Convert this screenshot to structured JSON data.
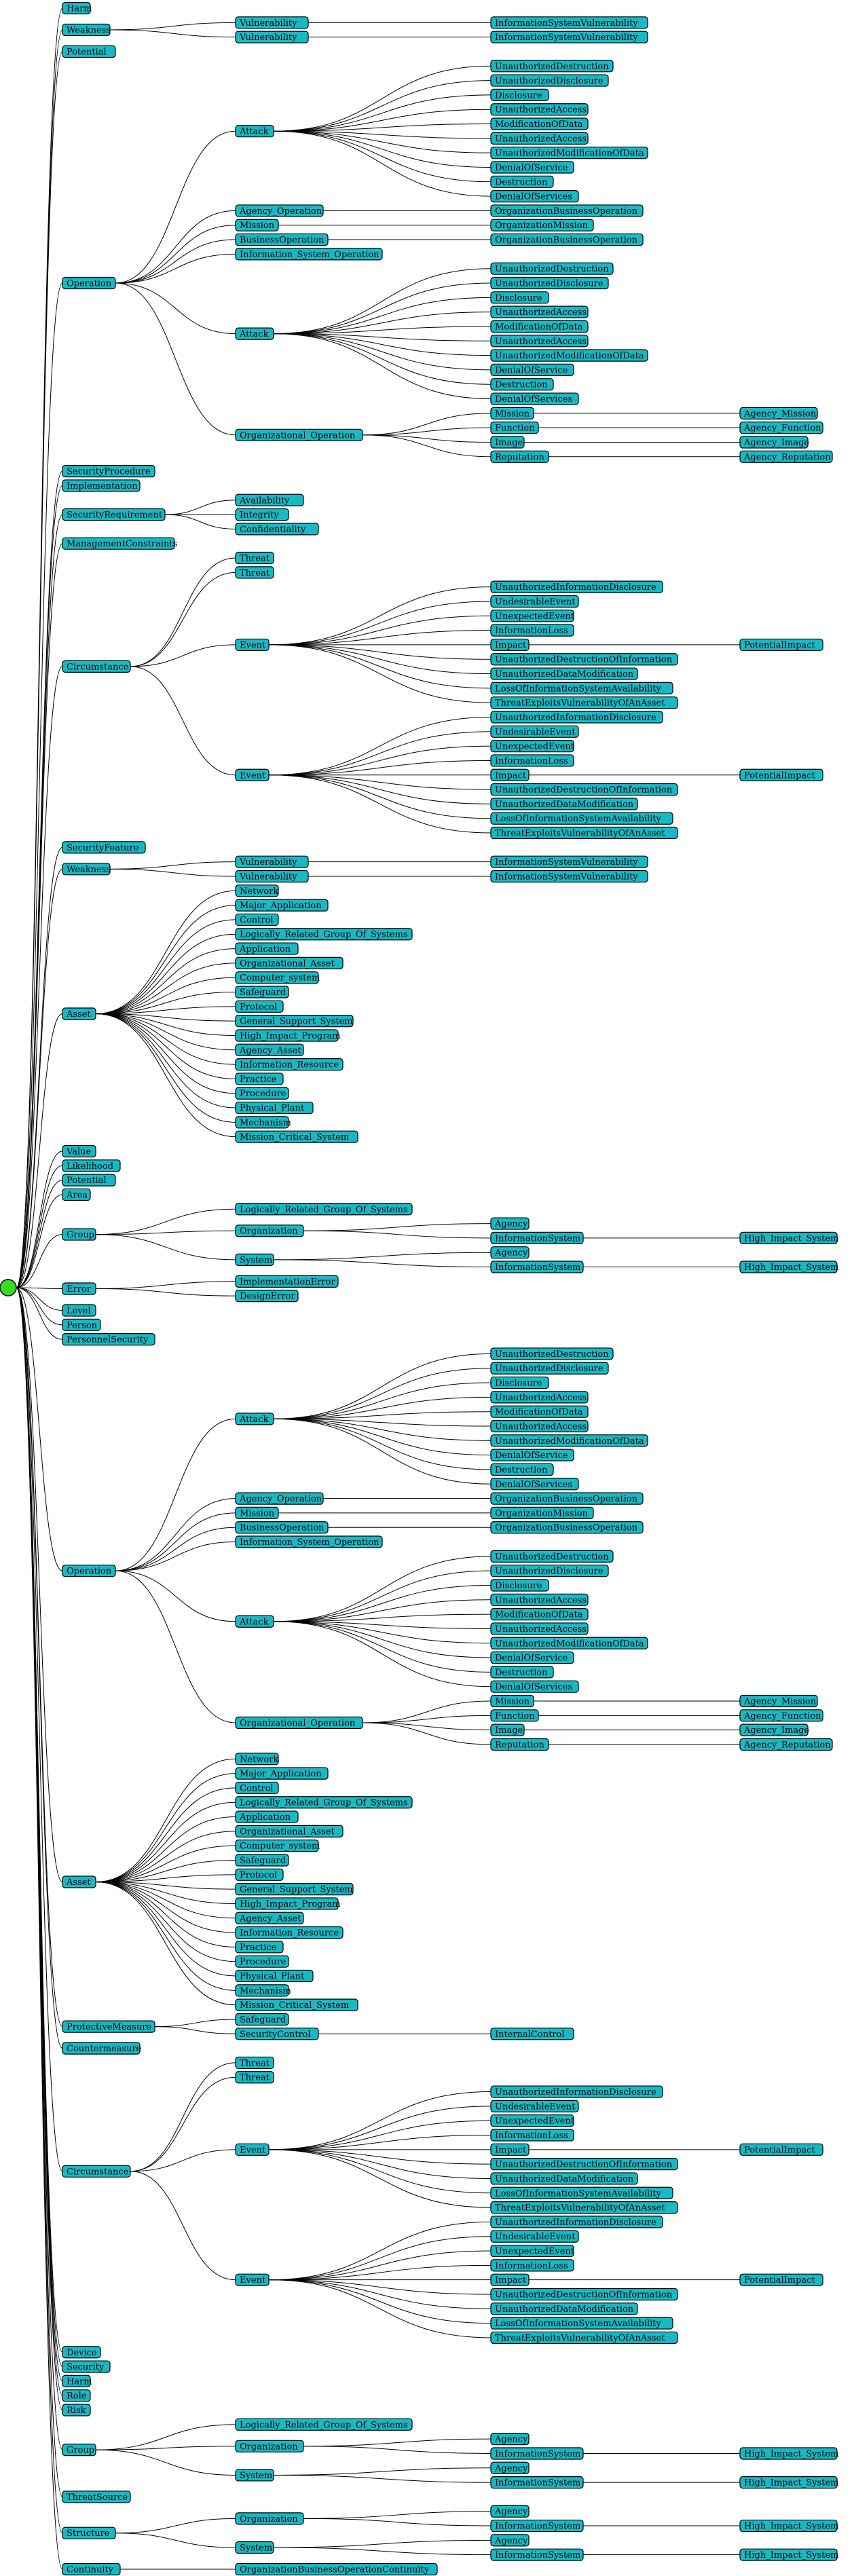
{
  "tree": {
    "label": "",
    "children": [
      {
        "label": "Harm"
      },
      {
        "label": "Weakness",
        "children": [
          {
            "label": "Vulnerability",
            "children": [
              {
                "label": "InformationSystemVulnerability"
              }
            ]
          },
          {
            "label": "Vulnerability",
            "children": [
              {
                "label": "InformationSystemVulnerability"
              }
            ]
          }
        ]
      },
      {
        "label": "Potential"
      },
      {
        "label": "Operation",
        "children": [
          {
            "label": "Attack",
            "children": [
              {
                "label": "UnauthorizedDestruction"
              },
              {
                "label": "UnauthorizedDisclosure"
              },
              {
                "label": "Disclosure"
              },
              {
                "label": "UnauthorizedAccess"
              },
              {
                "label": "ModificationOfData"
              },
              {
                "label": "UnauthorizedAccess"
              },
              {
                "label": "UnauthorizedModificationOfData"
              },
              {
                "label": "DenialOfService"
              },
              {
                "label": "Destruction"
              },
              {
                "label": "DenialOfServices"
              }
            ]
          },
          {
            "label": "Agency_Operation",
            "children": [
              {
                "label": "OrganizationBusinessOperation"
              }
            ]
          },
          {
            "label": "Mission",
            "children": [
              {
                "label": "OrganizationMission"
              }
            ]
          },
          {
            "label": "BusinessOperation",
            "children": [
              {
                "label": "OrganizationBusinessOperation"
              }
            ]
          },
          {
            "label": "Information_System_Operation"
          },
          {
            "label": "Attack",
            "children": [
              {
                "label": "UnauthorizedDestruction"
              },
              {
                "label": "UnauthorizedDisclosure"
              },
              {
                "label": "Disclosure"
              },
              {
                "label": "UnauthorizedAccess"
              },
              {
                "label": "ModificationOfData"
              },
              {
                "label": "UnauthorizedAccess"
              },
              {
                "label": "UnauthorizedModificationOfData"
              },
              {
                "label": "DenialOfService"
              },
              {
                "label": "Destruction"
              },
              {
                "label": "DenialOfServices"
              }
            ]
          },
          {
            "label": "Organizational_Operation",
            "children": [
              {
                "label": "Mission",
                "children": [
                  {
                    "label": "Agency_Mission"
                  }
                ]
              },
              {
                "label": "Function",
                "children": [
                  {
                    "label": "Agency_Function"
                  }
                ]
              },
              {
                "label": "Image",
                "children": [
                  {
                    "label": "Agency_Image"
                  }
                ]
              },
              {
                "label": "Reputation",
                "children": [
                  {
                    "label": "Agency_Reputation"
                  }
                ]
              }
            ]
          }
        ]
      },
      {
        "label": "SecurityProcedure"
      },
      {
        "label": "Implementation"
      },
      {
        "label": "SecurityRequirement",
        "children": [
          {
            "label": "Availability"
          },
          {
            "label": "Integrity"
          },
          {
            "label": "Confidentiality"
          }
        ]
      },
      {
        "label": "ManagementConstraints"
      },
      {
        "label": "Circumstance",
        "children": [
          {
            "label": "Threat"
          },
          {
            "label": "Threat"
          },
          {
            "label": "Event",
            "children": [
              {
                "label": "UnauthorizedInformationDisclosure"
              },
              {
                "label": "UndesirableEvent"
              },
              {
                "label": "UnexpectedEvent"
              },
              {
                "label": "InformationLoss"
              },
              {
                "label": "Impact",
                "children": [
                  {
                    "label": "PotentialImpact"
                  }
                ]
              },
              {
                "label": "UnauthorizedDestructionOfInformation"
              },
              {
                "label": "UnauthorizedDataModification"
              },
              {
                "label": "LossOfInformationSystemAvailability"
              },
              {
                "label": "ThreatExploitsVulnerabilityOfAnAsset"
              }
            ]
          },
          {
            "label": "Event",
            "children": [
              {
                "label": "UnauthorizedInformationDisclosure"
              },
              {
                "label": "UndesirableEvent"
              },
              {
                "label": "UnexpectedEvent"
              },
              {
                "label": "InformationLoss"
              },
              {
                "label": "Impact",
                "children": [
                  {
                    "label": "PotentialImpact"
                  }
                ]
              },
              {
                "label": "UnauthorizedDestructionOfInformation"
              },
              {
                "label": "UnauthorizedDataModification"
              },
              {
                "label": "LossOfInformationSystemAvailability"
              },
              {
                "label": "ThreatExploitsVulnerabilityOfAnAsset"
              }
            ]
          }
        ]
      },
      {
        "label": "SecurityFeature"
      },
      {
        "label": "Weakness",
        "children": [
          {
            "label": "Vulnerability",
            "children": [
              {
                "label": "InformationSystemVulnerability"
              }
            ]
          },
          {
            "label": "Vulnerability",
            "children": [
              {
                "label": "InformationSystemVulnerability"
              }
            ]
          }
        ]
      },
      {
        "label": "Asset",
        "children": [
          {
            "label": "Network"
          },
          {
            "label": "Major_Application"
          },
          {
            "label": "Control"
          },
          {
            "label": "Logically_Related_Group_Of_Systems"
          },
          {
            "label": "Application"
          },
          {
            "label": "Organizational_Asset"
          },
          {
            "label": "Computer_system"
          },
          {
            "label": "Safeguard"
          },
          {
            "label": "Protocol"
          },
          {
            "label": "General_Support_System"
          },
          {
            "label": "High_Impact_Program"
          },
          {
            "label": "Agency_Asset"
          },
          {
            "label": "Information_Resource"
          },
          {
            "label": "Practice"
          },
          {
            "label": "Procedure"
          },
          {
            "label": "Physical_Plant"
          },
          {
            "label": "Mechanism"
          },
          {
            "label": "Mission_Critical_System"
          }
        ]
      },
      {
        "label": "Value"
      },
      {
        "label": "Likelihood"
      },
      {
        "label": "Potential"
      },
      {
        "label": "Area"
      },
      {
        "label": "Group",
        "children": [
          {
            "label": "Logically_Related_Group_Of_Systems"
          },
          {
            "label": "Organization",
            "children": [
              {
                "label": "Agency"
              },
              {
                "label": "InformationSystem",
                "children": [
                  {
                    "label": "High_Impact_System"
                  }
                ]
              }
            ]
          },
          {
            "label": "System",
            "children": [
              {
                "label": "Agency"
              },
              {
                "label": "InformationSystem",
                "children": [
                  {
                    "label": "High_Impact_System"
                  }
                ]
              }
            ]
          }
        ]
      },
      {
        "label": "Error",
        "children": [
          {
            "label": "ImplementationError"
          },
          {
            "label": "DesignError"
          }
        ]
      },
      {
        "label": "Level"
      },
      {
        "label": "Person"
      },
      {
        "label": "PersonnelSecurity"
      },
      {
        "label": "Operation",
        "children": [
          {
            "label": "Attack",
            "children": [
              {
                "label": "UnauthorizedDestruction"
              },
              {
                "label": "UnauthorizedDisclosure"
              },
              {
                "label": "Disclosure"
              },
              {
                "label": "UnauthorizedAccess"
              },
              {
                "label": "ModificationOfData"
              },
              {
                "label": "UnauthorizedAccess"
              },
              {
                "label": "UnauthorizedModificationOfData"
              },
              {
                "label": "DenialOfService"
              },
              {
                "label": "Destruction"
              },
              {
                "label": "DenialOfServices"
              }
            ]
          },
          {
            "label": "Agency_Operation",
            "children": [
              {
                "label": "OrganizationBusinessOperation"
              }
            ]
          },
          {
            "label": "Mission",
            "children": [
              {
                "label": "OrganizationMission"
              }
            ]
          },
          {
            "label": "BusinessOperation",
            "children": [
              {
                "label": "OrganizationBusinessOperation"
              }
            ]
          },
          {
            "label": "Information_System_Operation"
          },
          {
            "label": "Attack",
            "children": [
              {
                "label": "UnauthorizedDestruction"
              },
              {
                "label": "UnauthorizedDisclosure"
              },
              {
                "label": "Disclosure"
              },
              {
                "label": "UnauthorizedAccess"
              },
              {
                "label": "ModificationOfData"
              },
              {
                "label": "UnauthorizedAccess"
              },
              {
                "label": "UnauthorizedModificationOfData"
              },
              {
                "label": "DenialOfService"
              },
              {
                "label": "Destruction"
              },
              {
                "label": "DenialOfServices"
              }
            ]
          },
          {
            "label": "Organizational_Operation",
            "children": [
              {
                "label": "Mission",
                "children": [
                  {
                    "label": "Agency_Mission"
                  }
                ]
              },
              {
                "label": "Function",
                "children": [
                  {
                    "label": "Agency_Function"
                  }
                ]
              },
              {
                "label": "Image",
                "children": [
                  {
                    "label": "Agency_Image"
                  }
                ]
              },
              {
                "label": "Reputation",
                "children": [
                  {
                    "label": "Agency_Reputation"
                  }
                ]
              }
            ]
          }
        ]
      },
      {
        "label": "Asset",
        "children": [
          {
            "label": "Network"
          },
          {
            "label": "Major_Application"
          },
          {
            "label": "Control"
          },
          {
            "label": "Logically_Related_Group_Of_Systems"
          },
          {
            "label": "Application"
          },
          {
            "label": "Organizational_Asset"
          },
          {
            "label": "Computer_system"
          },
          {
            "label": "Safeguard"
          },
          {
            "label": "Protocol"
          },
          {
            "label": "General_Support_System"
          },
          {
            "label": "High_Impact_Program"
          },
          {
            "label": "Agency_Asset"
          },
          {
            "label": "Information_Resource"
          },
          {
            "label": "Practice"
          },
          {
            "label": "Procedure"
          },
          {
            "label": "Physical_Plant"
          },
          {
            "label": "Mechanism"
          },
          {
            "label": "Mission_Critical_System"
          }
        ]
      },
      {
        "label": "ProtectiveMeasure",
        "children": [
          {
            "label": "Safeguard"
          },
          {
            "label": "SecurityControl",
            "children": [
              {
                "label": "InternalControl"
              }
            ]
          }
        ]
      },
      {
        "label": "Countermeasure"
      },
      {
        "label": "Circumstance",
        "children": [
          {
            "label": "Threat"
          },
          {
            "label": "Threat"
          },
          {
            "label": "Event",
            "children": [
              {
                "label": "UnauthorizedInformationDisclosure"
              },
              {
                "label": "UndesirableEvent"
              },
              {
                "label": "UnexpectedEvent"
              },
              {
                "label": "InformationLoss"
              },
              {
                "label": "Impact",
                "children": [
                  {
                    "label": "PotentialImpact"
                  }
                ]
              },
              {
                "label": "UnauthorizedDestructionOfInformation"
              },
              {
                "label": "UnauthorizedDataModification"
              },
              {
                "label": "LossOfInformationSystemAvailability"
              },
              {
                "label": "ThreatExploitsVulnerabilityOfAnAsset"
              }
            ]
          },
          {
            "label": "Event",
            "children": [
              {
                "label": "UnauthorizedInformationDisclosure"
              },
              {
                "label": "UndesirableEvent"
              },
              {
                "label": "UnexpectedEvent"
              },
              {
                "label": "InformationLoss"
              },
              {
                "label": "Impact",
                "children": [
                  {
                    "label": "PotentialImpact"
                  }
                ]
              },
              {
                "label": "UnauthorizedDestructionOfInformation"
              },
              {
                "label": "UnauthorizedDataModification"
              },
              {
                "label": "LossOfInformationSystemAvailability"
              },
              {
                "label": "ThreatExploitsVulnerabilityOfAnAsset"
              }
            ]
          }
        ]
      },
      {
        "label": "Device"
      },
      {
        "label": "Security"
      },
      {
        "label": "Harm"
      },
      {
        "label": "Role"
      },
      {
        "label": "Risk"
      },
      {
        "label": "Group",
        "children": [
          {
            "label": "Logically_Related_Group_Of_Systems"
          },
          {
            "label": "Organization",
            "children": [
              {
                "label": "Agency"
              },
              {
                "label": "InformationSystem",
                "children": [
                  {
                    "label": "High_Impact_System"
                  }
                ]
              }
            ]
          },
          {
            "label": "System",
            "children": [
              {
                "label": "Agency"
              },
              {
                "label": "InformationSystem",
                "children": [
                  {
                    "label": "High_Impact_System"
                  }
                ]
              }
            ]
          }
        ]
      },
      {
        "label": "ThreatSource"
      },
      {
        "label": "Structure",
        "children": [
          {
            "label": "Organization",
            "children": [
              {
                "label": "Agency"
              },
              {
                "label": "InformationSystem",
                "children": [
                  {
                    "label": "High_Impact_System"
                  }
                ]
              }
            ]
          },
          {
            "label": "System",
            "children": [
              {
                "label": "Agency"
              },
              {
                "label": "InformationSystem",
                "children": [
                  {
                    "label": "High_Impact_System"
                  }
                ]
              }
            ]
          }
        ]
      },
      {
        "label": "Continuity",
        "children": [
          {
            "label": "OrganizationBusinessOperationContinuity"
          }
        ]
      }
    ]
  },
  "colors": {
    "node_fill": "#18b9c4",
    "root_fill": "#33dd22",
    "edge": "#000000"
  }
}
